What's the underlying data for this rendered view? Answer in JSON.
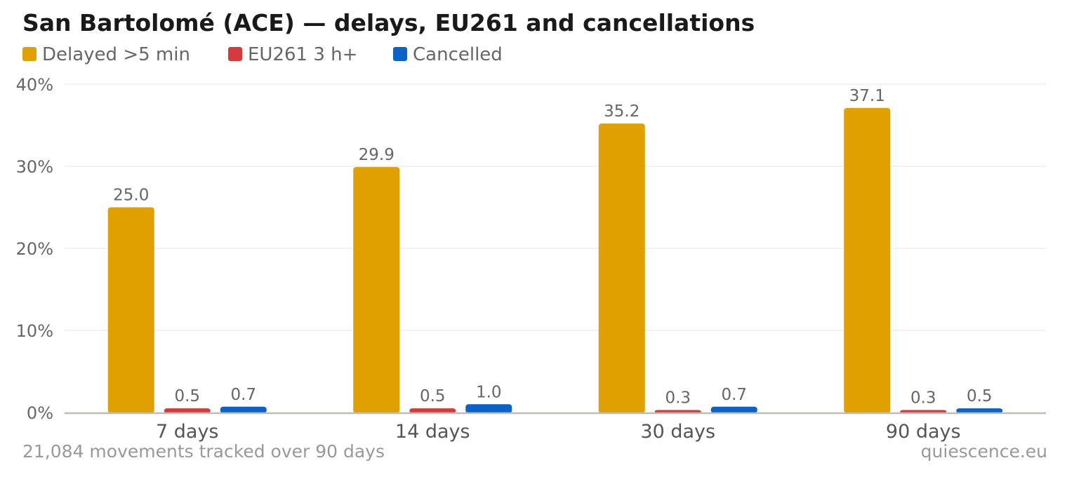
{
  "chart_data": {
    "type": "bar",
    "title": "San Bartolomé (ACE) — delays, EU261 and cancellations",
    "categories": [
      "7 days",
      "14 days",
      "30 days",
      "90 days"
    ],
    "series": [
      {
        "name": "Delayed >5 min",
        "color": "#e0a000",
        "values": [
          25.0,
          29.9,
          35.2,
          37.1
        ],
        "labels": [
          "25.0",
          "29.9",
          "35.2",
          "37.1"
        ]
      },
      {
        "name": "EU261 3 h+",
        "color": "#d63a3a",
        "values": [
          0.5,
          0.5,
          0.3,
          0.3
        ],
        "labels": [
          "0.5",
          "0.5",
          "0.3",
          "0.3"
        ]
      },
      {
        "name": "Cancelled",
        "color": "#0a63c9",
        "values": [
          0.7,
          1.0,
          0.7,
          0.5
        ],
        "labels": [
          "0.7",
          "1.0",
          "0.7",
          "0.5"
        ]
      }
    ],
    "ylim": [
      0,
      40
    ],
    "yticks": [
      0,
      10,
      20,
      30,
      40
    ],
    "ytick_labels": [
      "0%",
      "10%",
      "20%",
      "30%",
      "40%"
    ],
    "grid": true,
    "legend_position": "top-left"
  },
  "footer": {
    "note": "21,084 movements tracked over 90 days",
    "source": "quiescence.eu"
  }
}
